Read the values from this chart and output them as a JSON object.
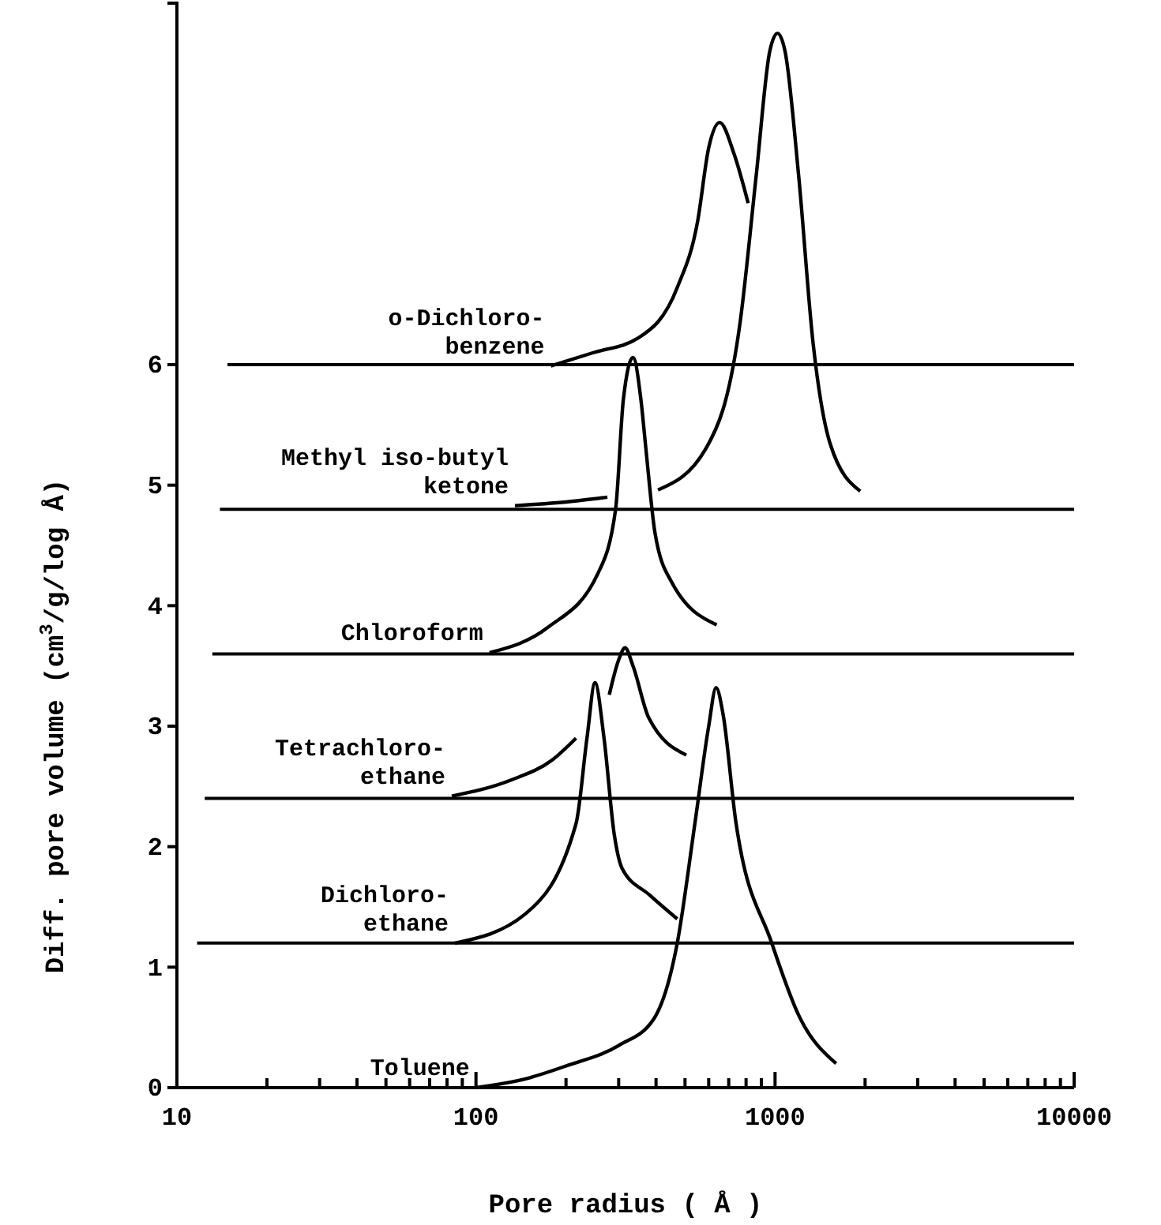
{
  "chart_data": {
    "type": "line",
    "xlabel": "Pore radius ( Å )",
    "ylabel": "Diff. pore volume (cm$^{3}$/g/log Å)",
    "log": "x",
    "xlim": [
      10,
      10000
    ],
    "ylim": [
      0,
      9
    ],
    "xticks": [
      10,
      {
        "value": 20,
        "label": null
      },
      {
        "value": 30,
        "label": null
      },
      {
        "value": 40,
        "label": null
      },
      {
        "value": 50,
        "label": null
      },
      {
        "value": 60,
        "label": null
      },
      {
        "value": 70,
        "label": null
      },
      {
        "value": 80,
        "label": null
      },
      {
        "value": 90,
        "label": null
      },
      100,
      {
        "value": 200,
        "label": null
      },
      {
        "value": 300,
        "label": null
      },
      {
        "value": 400,
        "label": null
      },
      {
        "value": 500,
        "label": null
      },
      {
        "value": 600,
        "label": null
      },
      {
        "value": 700,
        "label": null
      },
      {
        "value": 800,
        "label": null
      },
      {
        "value": 900,
        "label": null
      },
      1000,
      {
        "value": 2000,
        "label": null
      },
      {
        "value": 3000,
        "label": null
      },
      {
        "value": 4000,
        "label": null
      },
      {
        "value": 5000,
        "label": null
      },
      {
        "value": 6000,
        "label": null
      },
      {
        "value": 7000,
        "label": null
      },
      {
        "value": 8000,
        "label": null
      },
      {
        "value": 9000,
        "label": null
      },
      10000
    ],
    "yticks": [
      0,
      1,
      2,
      3,
      4,
      5,
      6
    ],
    "grid": false,
    "marker": "none",
    "line_style": "solid",
    "ref_lines": [
      {
        "axis": "y",
        "value": 1.2,
        "color": "#000000"
      },
      {
        "axis": "y",
        "value": 2.4,
        "color": "#000000"
      },
      {
        "axis": "y",
        "value": 3.6,
        "color": "#000000"
      },
      {
        "axis": "y",
        "value": 4.8,
        "color": "#000000"
      },
      {
        "axis": "y",
        "value": 6.0,
        "color": "#000000"
      }
    ],
    "series": [
      {
        "name": "Toluene",
        "color": "#000000",
        "x": [
          100,
          150,
          200,
          300,
          393,
          471,
          540,
          600,
          635,
          670,
          740,
          975,
          1200,
          1600
        ],
        "values": [
          0,
          0.08,
          0.18,
          0.35,
          0.57,
          1.2,
          2.2,
          3.0,
          3.32,
          3.1,
          2.2,
          1.2,
          0.6,
          0.2
        ]
      },
      {
        "name": "Dichloro-\nethane",
        "color": "#000000",
        "x": [
          85,
          146,
          216,
          235,
          250,
          268,
          290,
          308,
          380,
          471
        ],
        "values": [
          1.2,
          1.44,
          2.19,
          2.9,
          3.36,
          2.9,
          2.1,
          1.82,
          1.6,
          1.4
        ]
      },
      {
        "name": "Tetrachloro-\nethane",
        "color": "#000000",
        "x": [
          83,
          130,
          180,
          216,
          250,
          279,
          300,
          315,
          335,
          378,
          505
        ],
        "values": [
          2.42,
          2.55,
          2.72,
          2.9,
          null,
          3.26,
          3.55,
          3.65,
          3.5,
          3.07,
          2.76
        ]
      },
      {
        "name": "Chloroform",
        "color": "#000000",
        "x": [
          111,
          174,
          256,
          293,
          311,
          335,
          356,
          370,
          397,
          450,
          638
        ],
        "values": [
          3.61,
          3.82,
          4.27,
          4.8,
          5.71,
          6.06,
          5.71,
          5.3,
          4.6,
          4.2,
          3.84
        ]
      },
      {
        "name": "Methyl iso-butyl\nketone",
        "color": "#000000",
        "x": [
          135,
          200,
          275,
          330,
          406,
          586,
          765,
          865,
          960,
          1019,
          1080,
          1199,
          1340,
          1530,
          1927
        ],
        "values": [
          4.83,
          4.86,
          4.9,
          null,
          4.96,
          5.3,
          6.36,
          7.57,
          8.6,
          8.75,
          8.6,
          7.57,
          6.18,
          5.34,
          4.95
        ]
      },
      {
        "name": "o-Dichloro-\nbenzene",
        "color": "#000000",
        "x": [
          178,
          247,
          348,
          471,
          551,
          600,
          653,
          729,
          813
        ],
        "values": [
          5.99,
          6.1,
          6.22,
          6.64,
          7.19,
          7.8,
          8.01,
          7.75,
          7.34
        ]
      }
    ]
  }
}
